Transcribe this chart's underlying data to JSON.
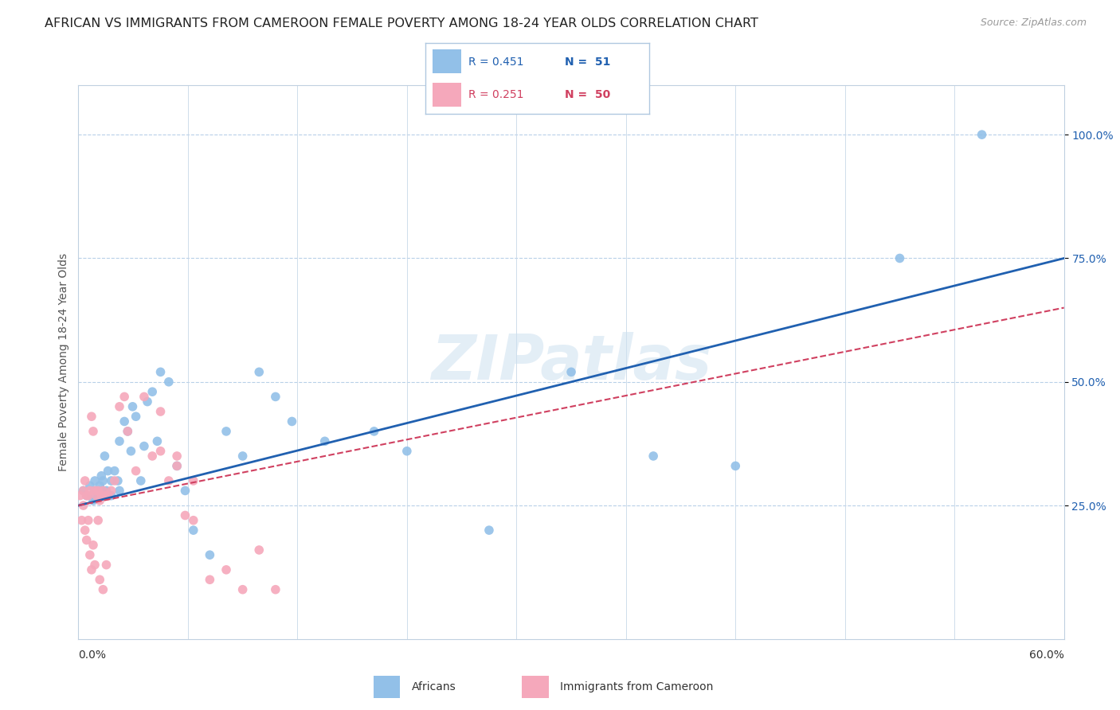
{
  "title": "AFRICAN VS IMMIGRANTS FROM CAMEROON FEMALE POVERTY AMONG 18-24 YEAR OLDS CORRELATION CHART",
  "source": "Source: ZipAtlas.com",
  "ylabel": "Female Poverty Among 18-24 Year Olds",
  "ytick_labels": [
    "100.0%",
    "75.0%",
    "50.0%",
    "25.0%"
  ],
  "ytick_values": [
    1.0,
    0.75,
    0.5,
    0.25
  ],
  "xlim": [
    0.0,
    0.6
  ],
  "ylim": [
    -0.02,
    1.1
  ],
  "african_color": "#92c0e8",
  "cameroon_color": "#f5a8bb",
  "african_line_color": "#2060b0",
  "cameroon_line_color": "#d04060",
  "watermark": "ZIPatlas",
  "title_fontsize": 11.5,
  "axis_label_fontsize": 10,
  "tick_fontsize": 10,
  "africans_x": [
    0.003,
    0.005,
    0.007,
    0.008,
    0.009,
    0.01,
    0.01,
    0.012,
    0.013,
    0.014,
    0.015,
    0.015,
    0.016,
    0.017,
    0.018,
    0.02,
    0.02,
    0.022,
    0.024,
    0.025,
    0.025,
    0.028,
    0.03,
    0.032,
    0.033,
    0.035,
    0.038,
    0.04,
    0.042,
    0.045,
    0.048,
    0.05,
    0.055,
    0.06,
    0.065,
    0.07,
    0.08,
    0.09,
    0.1,
    0.11,
    0.12,
    0.13,
    0.15,
    0.18,
    0.2,
    0.25,
    0.3,
    0.35,
    0.4,
    0.5,
    0.55
  ],
  "africans_y": [
    0.28,
    0.27,
    0.29,
    0.27,
    0.26,
    0.28,
    0.3,
    0.27,
    0.29,
    0.31,
    0.28,
    0.3,
    0.35,
    0.28,
    0.32,
    0.27,
    0.3,
    0.32,
    0.3,
    0.28,
    0.38,
    0.42,
    0.4,
    0.36,
    0.45,
    0.43,
    0.3,
    0.37,
    0.46,
    0.48,
    0.38,
    0.52,
    0.5,
    0.33,
    0.28,
    0.2,
    0.15,
    0.4,
    0.35,
    0.52,
    0.47,
    0.42,
    0.38,
    0.4,
    0.36,
    0.2,
    0.52,
    0.35,
    0.33,
    0.75,
    1.0
  ],
  "cameroon_x": [
    0.001,
    0.002,
    0.003,
    0.003,
    0.004,
    0.004,
    0.005,
    0.005,
    0.006,
    0.006,
    0.007,
    0.007,
    0.008,
    0.008,
    0.009,
    0.009,
    0.01,
    0.01,
    0.011,
    0.012,
    0.012,
    0.013,
    0.013,
    0.014,
    0.015,
    0.015,
    0.016,
    0.017,
    0.018,
    0.02,
    0.022,
    0.025,
    0.028,
    0.03,
    0.035,
    0.04,
    0.045,
    0.05,
    0.06,
    0.07,
    0.08,
    0.09,
    0.1,
    0.11,
    0.12,
    0.05,
    0.055,
    0.06,
    0.065,
    0.07
  ],
  "cameroon_y": [
    0.27,
    0.22,
    0.28,
    0.25,
    0.3,
    0.2,
    0.27,
    0.18,
    0.27,
    0.22,
    0.28,
    0.15,
    0.43,
    0.12,
    0.4,
    0.17,
    0.28,
    0.13,
    0.27,
    0.28,
    0.22,
    0.26,
    0.1,
    0.27,
    0.28,
    0.08,
    0.27,
    0.13,
    0.27,
    0.28,
    0.3,
    0.45,
    0.47,
    0.4,
    0.32,
    0.47,
    0.35,
    0.36,
    0.33,
    0.3,
    0.1,
    0.12,
    0.08,
    0.16,
    0.08,
    0.44,
    0.3,
    0.35,
    0.23,
    0.22
  ]
}
